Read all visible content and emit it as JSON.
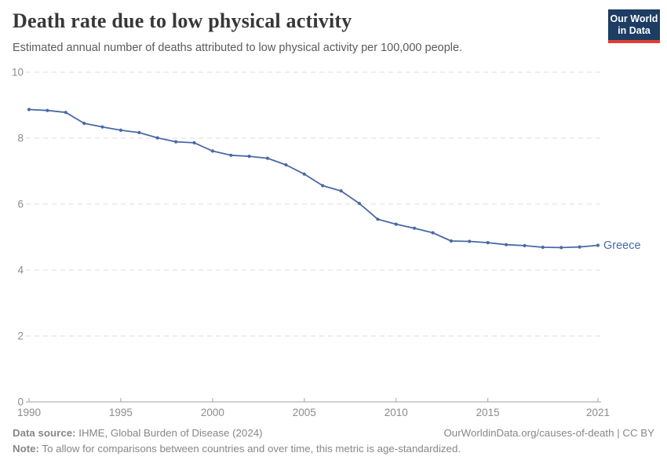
{
  "header": {
    "title": "Death rate due to low physical activity",
    "subtitle": "Estimated annual number of deaths attributed to low physical activity per 100,000 people.",
    "logo": {
      "line1": "Our World",
      "line2": "in Data",
      "bg_color": "#1d3d63",
      "accent_color": "#e23d33"
    }
  },
  "chart_data": {
    "type": "line",
    "title": "Death rate due to low physical activity",
    "xlabel": "",
    "ylabel": "",
    "xlim": [
      1990,
      2021
    ],
    "ylim": [
      0,
      10
    ],
    "x_ticks": [
      1990,
      1995,
      2000,
      2005,
      2010,
      2015,
      2021
    ],
    "y_ticks": [
      0,
      2,
      4,
      6,
      8,
      10
    ],
    "grid": "horizontal-dashed",
    "legend_position": "end-of-line-label",
    "series": [
      {
        "name": "Greece",
        "color": "#4a69a5",
        "x": [
          1990,
          1991,
          1992,
          1993,
          1994,
          1995,
          1996,
          1997,
          1998,
          1999,
          2000,
          2001,
          2002,
          2003,
          2004,
          2005,
          2006,
          2007,
          2008,
          2009,
          2010,
          2011,
          2012,
          2013,
          2014,
          2015,
          2016,
          2017,
          2018,
          2019,
          2020,
          2021
        ],
        "values": [
          8.87,
          8.84,
          8.78,
          8.45,
          8.34,
          8.24,
          8.17,
          8.01,
          7.89,
          7.86,
          7.61,
          7.48,
          7.45,
          7.39,
          7.19,
          6.91,
          6.56,
          6.4,
          6.02,
          5.54,
          5.39,
          5.27,
          5.13,
          4.88,
          4.87,
          4.83,
          4.77,
          4.74,
          4.69,
          4.68,
          4.7,
          4.75
        ]
      }
    ],
    "style": {
      "gridline_color": "#dcdcdc",
      "axis_color": "#a3a3a3",
      "tick_label_color": "#8c8c8c",
      "tick_label_size": 13.5,
      "series_label_size": 14.5
    }
  },
  "footer": {
    "data_source_label": "Data source:",
    "data_source_text": " IHME, Global Burden of Disease (2024)",
    "link_text": "OurWorldinData.org/causes-of-death | CC BY",
    "note_label": "Note:",
    "note_text": " To allow for comparisons between countries and over time, this metric is age-standardized."
  }
}
